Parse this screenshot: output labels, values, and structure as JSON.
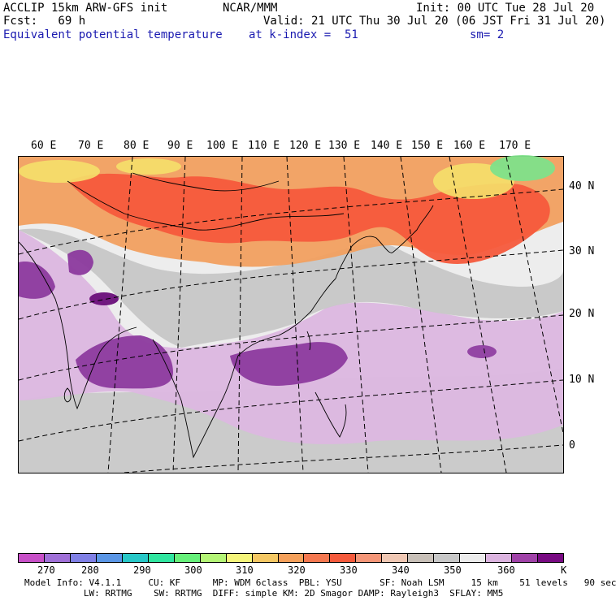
{
  "header": {
    "model_title": "ACCLIP 15km ARW-GFS init",
    "forecast": "Fcst:   69 h",
    "org": "NCAR/MMM",
    "init": "Init: 00 UTC Tue 28 Jul 20",
    "valid": "Valid: 21 UTC Thu 30 Jul 20 (06 JST Fri 31 Jul 20)",
    "field": "Equivalent potential temperature",
    "level": "at k-index =  51",
    "smoothing": "sm= 2"
  },
  "map": {
    "longitude_labels": [
      "60 E",
      "70 E",
      "80 E",
      "90 E",
      "100 E",
      "110 E",
      "120 E",
      "130 E",
      "140 E",
      "150 E",
      "160 E",
      "170 E"
    ],
    "latitude_labels": [
      "40 N",
      "30 N",
      "20 N",
      "10 N",
      "0"
    ],
    "colors": {
      "hot_red": "#f55a3c",
      "orange": "#f2a060",
      "yellow": "#f5e06a",
      "green": "#7ee28a",
      "gray": "#c7c7c7",
      "light_gray": "#ededed",
      "lavender": "#dcb7e0",
      "purple": "#8c3a9e",
      "dark_purple": "#6a0f7a"
    }
  },
  "colorbar": {
    "colors": [
      "#c850c8",
      "#a070d8",
      "#8080e6",
      "#5a96e6",
      "#28c8c8",
      "#30e6a0",
      "#66f07a",
      "#b4f576",
      "#f5f57a",
      "#f5c864",
      "#f5a05a",
      "#f57850",
      "#f55a3c",
      "#f59678",
      "#f0c8b4",
      "#c8c0b8",
      "#c8c8c8",
      "#ececec",
      "#dcb4e0",
      "#a042a8",
      "#780a82"
    ],
    "tick_labels": [
      "270",
      "280",
      "290",
      "300",
      "310",
      "320",
      "330",
      "340",
      "350",
      "360"
    ],
    "unit": "K"
  },
  "footer": {
    "line1": "Model Info: V4.1.1     CU: KF      MP: WDM 6class  PBL: YSU       SF: Noah LSM     15 km    51 levels   90 sec",
    "line2": "           LW: RRTMG    SW: RRTMG  DIFF: simple KM: 2D Smagor DAMP: Rayleigh3  SFLAY: MM5"
  }
}
